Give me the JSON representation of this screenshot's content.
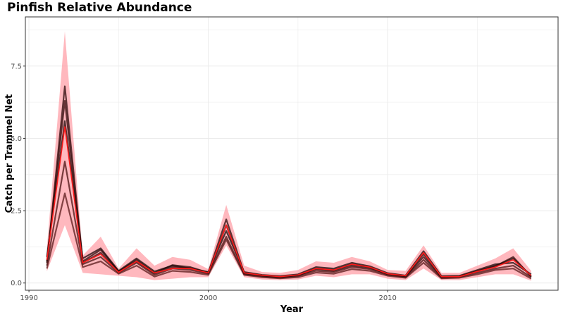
{
  "chart_data": {
    "type": "line",
    "title": "Pinfish Relative Abundance",
    "xlabel": "Year",
    "ylabel": "Catch per Trammel Net",
    "xlim": [
      1989.8,
      2019.5
    ],
    "ylim": [
      -0.25,
      9.2
    ],
    "x_ticks": [
      1990,
      2000,
      2010
    ],
    "x_tick_labels": [
      "1990",
      "2000",
      "2010"
    ],
    "y_ticks": [
      0,
      2.5,
      5,
      7.5
    ],
    "y_tick_labels": [
      "0.0",
      "2.5",
      "5.0",
      "7.5"
    ],
    "grid": true,
    "legend": "none",
    "x": [
      1991,
      1992,
      1993,
      1994,
      1995,
      1996,
      1997,
      1998,
      1999,
      2000,
      2001,
      2002,
      2003,
      2004,
      2005,
      2006,
      2007,
      2008,
      2009,
      2010,
      2011,
      2012,
      2013,
      2014,
      2015,
      2016,
      2017,
      2018
    ],
    "series": [
      {
        "role": "ci_upper",
        "values": [
          1.2,
          8.7,
          0.95,
          1.6,
          0.5,
          1.2,
          0.6,
          0.9,
          0.8,
          0.48,
          2.7,
          0.6,
          0.38,
          0.35,
          0.45,
          0.75,
          0.7,
          0.9,
          0.75,
          0.45,
          0.42,
          1.3,
          0.35,
          0.35,
          0.6,
          0.85,
          1.2,
          0.42
        ]
      },
      {
        "role": "ci_lower",
        "values": [
          0.4,
          2.0,
          0.35,
          0.3,
          0.25,
          0.2,
          0.1,
          0.15,
          0.2,
          0.2,
          1.3,
          0.2,
          0.12,
          0.1,
          0.12,
          0.25,
          0.2,
          0.3,
          0.3,
          0.15,
          0.1,
          0.5,
          0.1,
          0.1,
          0.2,
          0.3,
          0.3,
          0.08
        ]
      },
      {
        "role": "model",
        "values": [
          0.7,
          6.8,
          0.75,
          1.15,
          0.4,
          0.8,
          0.35,
          0.62,
          0.55,
          0.36,
          2.2,
          0.35,
          0.26,
          0.2,
          0.27,
          0.5,
          0.45,
          0.65,
          0.55,
          0.3,
          0.22,
          1.0,
          0.2,
          0.22,
          0.4,
          0.6,
          0.85,
          0.25
        ]
      },
      {
        "role": "model",
        "values": [
          0.6,
          4.2,
          0.65,
          0.9,
          0.35,
          0.7,
          0.28,
          0.5,
          0.45,
          0.32,
          1.6,
          0.3,
          0.22,
          0.18,
          0.24,
          0.42,
          0.38,
          0.55,
          0.48,
          0.28,
          0.2,
          0.8,
          0.18,
          0.2,
          0.35,
          0.5,
          0.6,
          0.2
        ]
      },
      {
        "role": "model",
        "values": [
          0.9,
          5.6,
          0.85,
          1.2,
          0.42,
          0.85,
          0.4,
          0.6,
          0.5,
          0.38,
          1.8,
          0.38,
          0.28,
          0.24,
          0.3,
          0.55,
          0.5,
          0.7,
          0.58,
          0.34,
          0.26,
          1.1,
          0.24,
          0.25,
          0.45,
          0.65,
          0.7,
          0.3
        ]
      },
      {
        "role": "model",
        "values": [
          0.5,
          3.1,
          0.55,
          0.75,
          0.32,
          0.6,
          0.22,
          0.42,
          0.38,
          0.28,
          1.5,
          0.28,
          0.2,
          0.16,
          0.2,
          0.36,
          0.32,
          0.48,
          0.42,
          0.25,
          0.18,
          0.7,
          0.16,
          0.18,
          0.3,
          0.45,
          0.5,
          0.15
        ]
      },
      {
        "role": "model",
        "values": [
          0.75,
          6.3,
          0.7,
          1.05,
          0.38,
          0.75,
          0.33,
          0.55,
          0.52,
          0.34,
          2.0,
          0.33,
          0.25,
          0.21,
          0.26,
          0.48,
          0.42,
          0.6,
          0.52,
          0.31,
          0.23,
          0.9,
          0.21,
          0.23,
          0.42,
          0.58,
          0.9,
          0.22
        ]
      },
      {
        "role": "mean",
        "values": [
          0.8,
          5.4,
          0.7,
          1.0,
          0.37,
          0.75,
          0.35,
          0.5,
          0.5,
          0.35,
          2.0,
          0.35,
          0.27,
          0.22,
          0.28,
          0.5,
          0.45,
          0.65,
          0.55,
          0.32,
          0.25,
          1.05,
          0.22,
          0.22,
          0.4,
          0.55,
          0.8,
          0.26
        ]
      }
    ]
  }
}
